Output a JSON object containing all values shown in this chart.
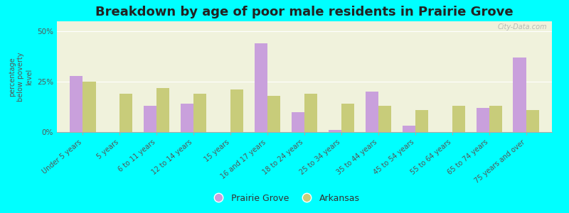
{
  "title": "Breakdown by age of poor male residents in Prairie Grove",
  "ylabel": "percentage\nbelow poverty\nlevel",
  "categories": [
    "Under 5 years",
    "5 years",
    "6 to 11 years",
    "12 to 14 years",
    "15 years",
    "16 and 17 years",
    "18 to 24 years",
    "25 to 34 years",
    "35 to 44 years",
    "45 to 54 years",
    "55 to 64 years",
    "65 to 74 years",
    "75 years and over"
  ],
  "prairie_grove": [
    28,
    0,
    13,
    14,
    0,
    44,
    10,
    1,
    20,
    3,
    0,
    12,
    37
  ],
  "arkansas": [
    25,
    19,
    22,
    19,
    21,
    18,
    19,
    14,
    13,
    11,
    13,
    13,
    11
  ],
  "prairie_grove_color": "#c9a0dc",
  "arkansas_color": "#c8cc7a",
  "background_color": "#00ffff",
  "plot_bg_color": "#f0f2dc",
  "ylim": [
    0,
    55
  ],
  "yticks": [
    0,
    25,
    50
  ],
  "ytick_labels": [
    "0%",
    "25%",
    "50%"
  ],
  "bar_width": 0.35,
  "legend_prairie_grove": "Prairie Grove",
  "legend_arkansas": "Arkansas",
  "watermark": "City-Data.com",
  "title_fontsize": 13,
  "label_fontsize": 7,
  "tick_fontsize": 7.5
}
